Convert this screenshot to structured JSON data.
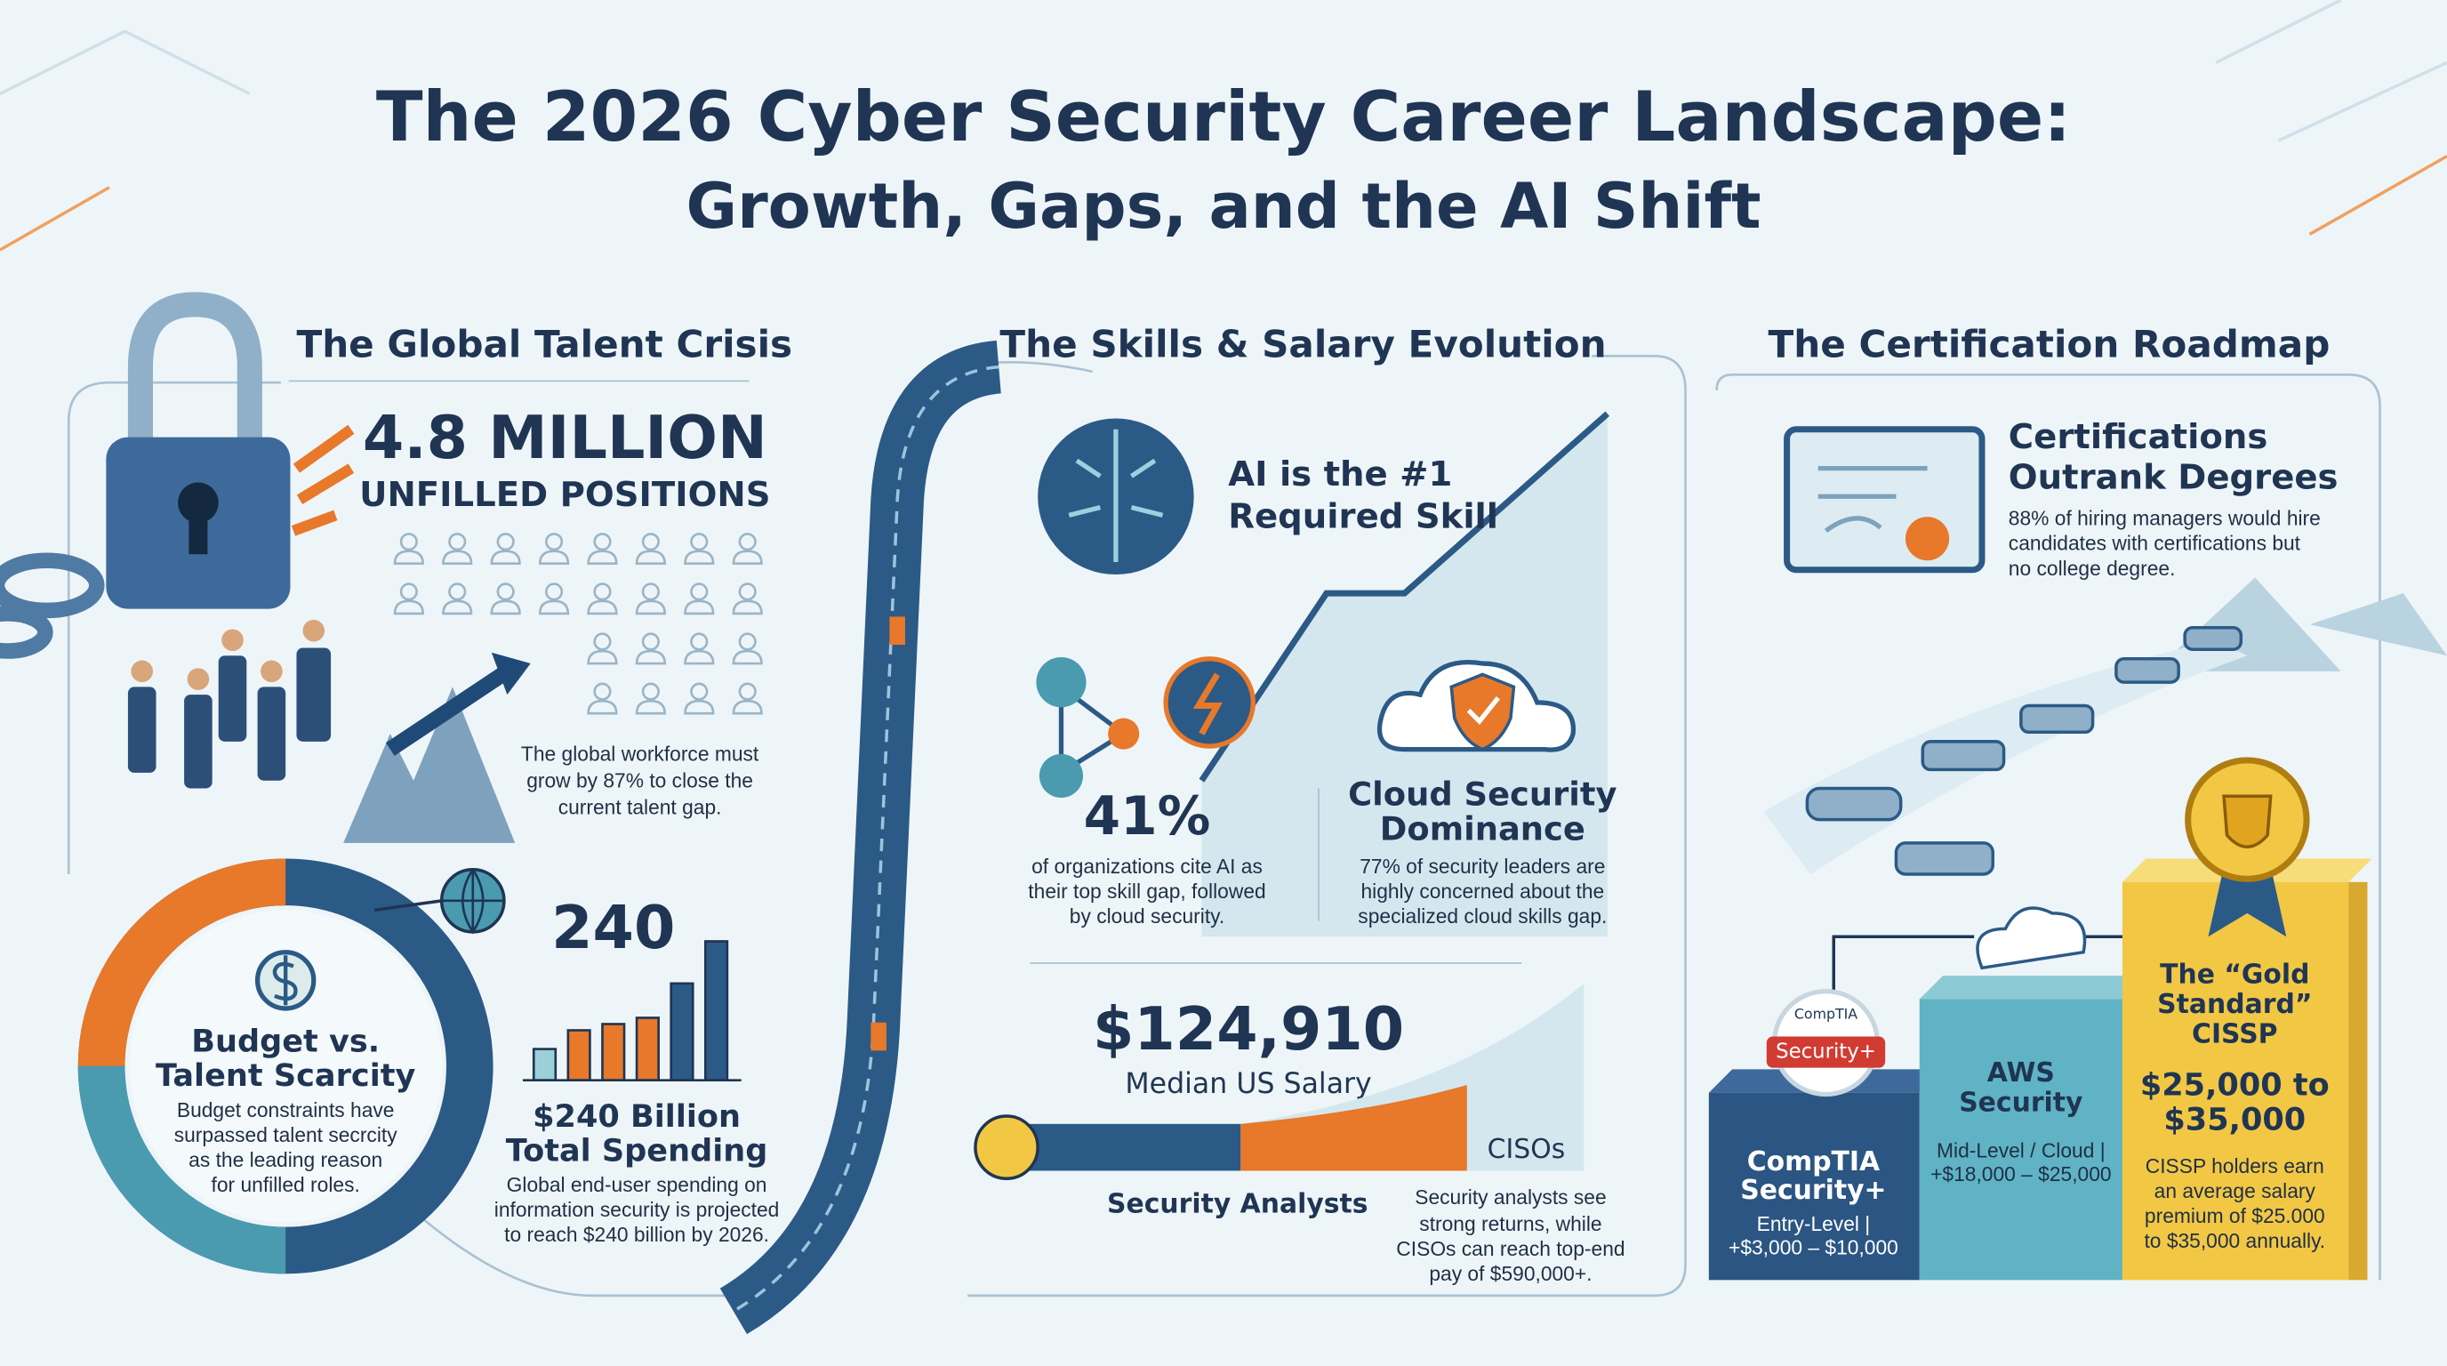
{
  "header": {
    "title": [
      "The 2026 Cyber Security Career Landscape:",
      "Growth, Gaps, and the AI Shift"
    ]
  },
  "talent_crisis": {
    "heading": "The Global Talent Crisis",
    "stat": "4.8 MILLION",
    "stat_label": "UNFILLED POSITIONS",
    "note": [
      "The global workforce must",
      "grow by 87% to close the",
      "current talent gap."
    ],
    "budget": {
      "title": [
        "Budget vs.",
        "Talent Scarcity"
      ],
      "text": [
        "Budget constraints have",
        "surpassed talent secrcity",
        "as the leading reason",
        "for unfilled roles."
      ]
    },
    "spending": {
      "figure": "240",
      "title": [
        "$240 Billion",
        "Total Spending"
      ],
      "text": [
        "Global end-user spending on",
        "information security is projected",
        "to reach $240 billion by 2026."
      ]
    }
  },
  "skills_salary": {
    "heading": "The Skills & Salary Evolution",
    "ai": [
      "AI is the #1",
      "Required Skill"
    ],
    "gap_stat": "41%",
    "gap_text": [
      "of organizations cite AI as",
      "their top skill gap, followed",
      "by cloud security."
    ],
    "cloud_title": [
      "Cloud Security",
      "Dominance"
    ],
    "cloud_text": [
      "77% of security leaders are",
      "highly concerned about the",
      "specialized cloud skills gap."
    ],
    "salary": "$124,910",
    "salary_label": "Median US Salary",
    "cisos": "CISOs",
    "analysts": "Security Analysts",
    "salary_text": [
      "Security analysts see",
      "strong returns, while",
      "CISOs can reach top-end",
      "pay of $590,000+."
    ]
  },
  "certifications": {
    "heading": "The Certification Roadmap",
    "title": [
      "Certifications",
      "Outrank Degrees"
    ],
    "text": [
      "88% of hiring managers would hire",
      "candidates with certifications but",
      "no college degree."
    ],
    "badge": [
      "CompTIA",
      "Security+"
    ],
    "comptia": {
      "title": [
        "CompTIA",
        "Security+"
      ],
      "text": [
        "Entry-Level |",
        "+$3,000 – $10,000"
      ]
    },
    "aws": {
      "title": [
        "AWS",
        "Security"
      ],
      "text": [
        "Mid-Level / Cloud |",
        "+$18,000 – $25,000"
      ]
    },
    "cissp": {
      "title": [
        "The “Gold",
        "Standard”",
        "CISSP"
      ],
      "premium": [
        "$25,000 to",
        "$35,000"
      ],
      "text": [
        "CISSP holders earn",
        "an average salary",
        "premium of $25.000",
        "to $35,000 annually."
      ]
    }
  }
}
